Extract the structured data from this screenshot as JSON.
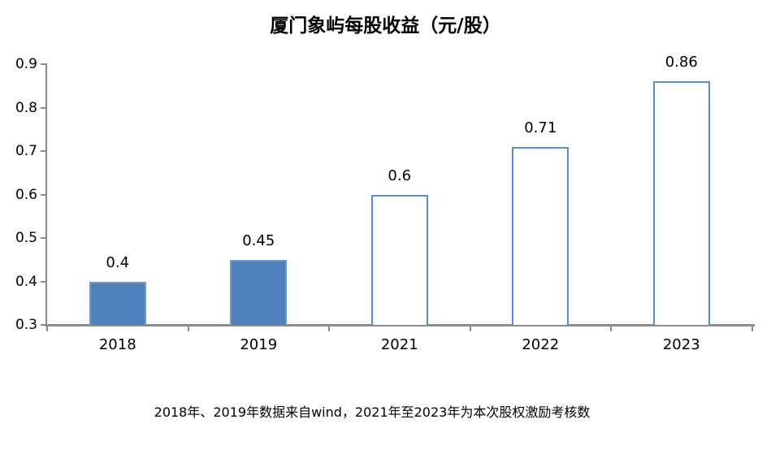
{
  "footnote": "2018年、2019年数据来自wind，2021年至2023年为本次股权激励考核数",
  "chart_data": {
    "type": "bar",
    "title": "厦门象屿每股收益（元/股）",
    "categories": [
      "2018",
      "2019",
      "2021",
      "2022",
      "2023"
    ],
    "values": [
      0.4,
      0.45,
      0.6,
      0.71,
      0.86
    ],
    "data_labels": [
      "0.4",
      "0.45",
      "0.6",
      "0.71",
      "0.86"
    ],
    "bar_styles": [
      "filled",
      "filled",
      "hollow",
      "hollow",
      "hollow"
    ],
    "xlabel": "",
    "ylabel": "",
    "ylim": [
      0.3,
      0.9
    ],
    "ytick_step": 0.1,
    "ytick_labels": [
      "0.9",
      "0.8",
      "0.7",
      "0.6",
      "0.5",
      "0.4",
      "0.3"
    ],
    "grid": false,
    "legend": "none",
    "colors": {
      "bar_fill": "#4F81BD",
      "bar_fill_border": "#6C9AD0",
      "bar_hollow_border": "#5B8DD5",
      "bar_hollow_fill": "#FFFFFF",
      "axis": "#8B8B8B",
      "text": "#000000"
    }
  }
}
